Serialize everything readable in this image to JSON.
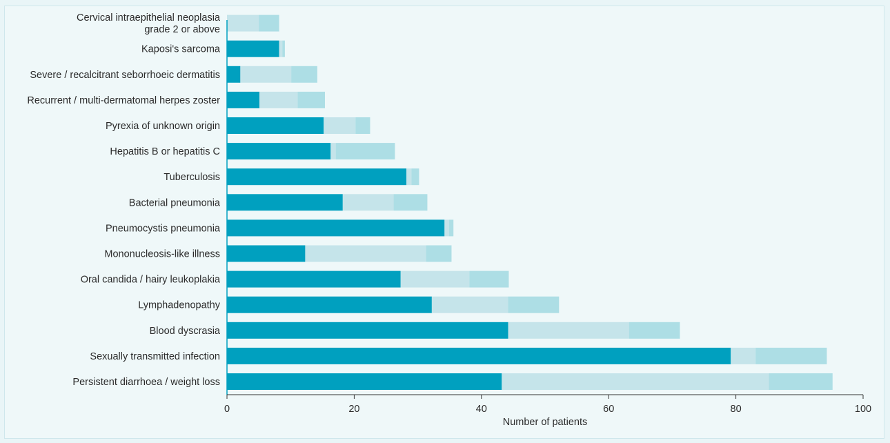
{
  "chart_data": {
    "type": "bar",
    "orientation": "horizontal",
    "stacked": true,
    "xlabel": "Number of patients",
    "ylabel": "",
    "xlim": [
      0,
      100
    ],
    "xticks": [
      0,
      20,
      40,
      60,
      80,
      100
    ],
    "grid": false,
    "legend": "none",
    "categories": [
      "Persistent diarrhoea / weight loss",
      "Sexually transmitted infection",
      "Blood dyscrasia",
      "Lymphadenopathy",
      "Oral candida / hairy leukoplakia",
      "Mononucleosis-like illness",
      "Pneumocystis pneumonia",
      "Bacterial pneumonia",
      "Tuberculosis",
      "Hepatitis B or hepatitis C",
      "Pyrexia of unknown origin",
      "Recurrent / multi-dermatomal herpes zoster",
      "Severe / recalcitrant seborrhoeic dermatitis",
      "Kaposi's sarcoma",
      "Cervical intraepithelial neoplasia grade 2 or above"
    ],
    "category_lines": [
      [
        "Persistent diarrhoea / weight loss"
      ],
      [
        "Sexually transmitted infection"
      ],
      [
        "Blood dyscrasia"
      ],
      [
        "Lymphadenopathy"
      ],
      [
        "Oral candida / hairy leukoplakia"
      ],
      [
        "Mononucleosis-like illness"
      ],
      [
        "Pneumocystis pneumonia"
      ],
      [
        "Bacterial pneumonia"
      ],
      [
        "Tuberculosis"
      ],
      [
        "Hepatitis B or hepatitis C"
      ],
      [
        "Pyrexia of unknown origin"
      ],
      [
        "Recurrent / multi-dermatomal herpes zoster"
      ],
      [
        "Severe / recalcitrant seborrhoeic dermatitis"
      ],
      [
        "Kaposi's sarcoma"
      ],
      [
        "Cervical intraepithelial neoplasia",
        "grade 2 or above"
      ]
    ],
    "series": [
      {
        "color": "#00a0bf",
        "values": [
          43.2,
          79.2,
          44.2,
          32.2,
          27.3,
          12.3,
          34.2,
          18.2,
          28.2,
          16.3,
          15.2,
          5.1,
          2.1,
          8.2,
          0
        ]
      },
      {
        "color": "#c5e4ea",
        "values": [
          42.0,
          3.9,
          19.0,
          12.0,
          10.8,
          19.0,
          0.7,
          8.0,
          0.8,
          0.8,
          5.0,
          6.0,
          8.0,
          0.5,
          5.0
        ]
      },
      {
        "color": "#addee5",
        "values": [
          10.0,
          11.2,
          8.0,
          8.0,
          6.2,
          4.0,
          0.7,
          5.3,
          1.2,
          9.3,
          2.3,
          4.3,
          4.1,
          0.4,
          3.2
        ]
      }
    ]
  }
}
